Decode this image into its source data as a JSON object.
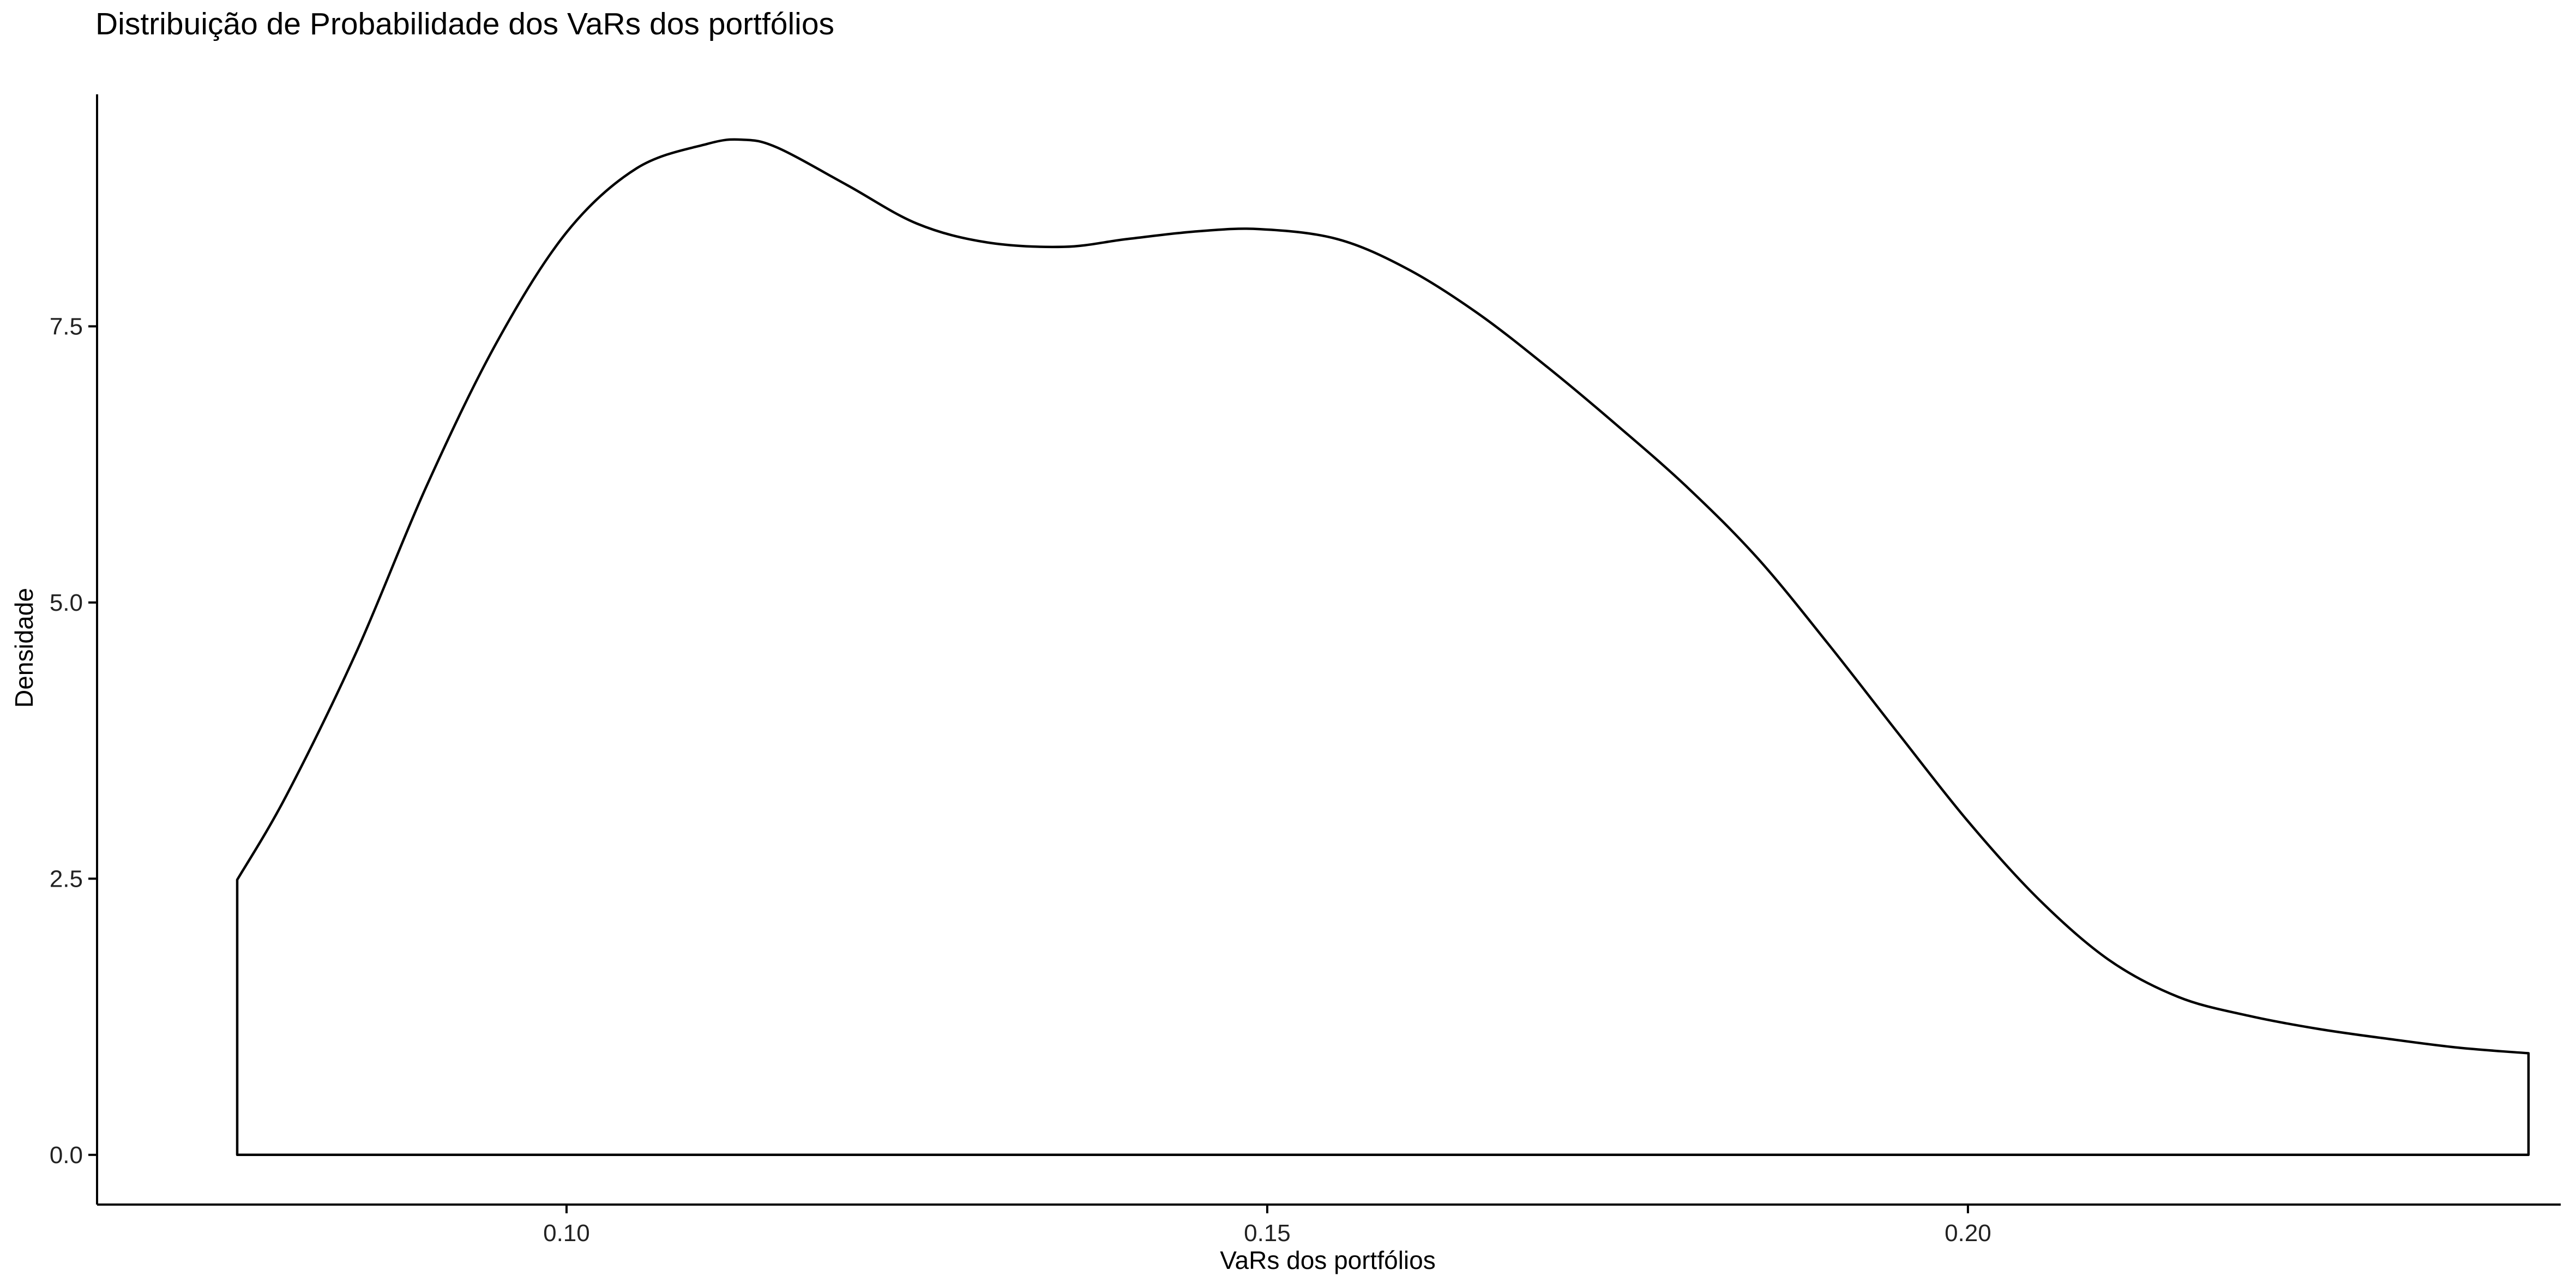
{
  "chart_data": {
    "type": "area",
    "title": "Distribuição de Probabilidade dos VaRs dos portfólios",
    "xlabel": "VaRs dos portfólios",
    "ylabel": "Densidade",
    "xlim": [
      0.0665,
      0.2423
    ],
    "ylim": [
      -0.45,
      9.6
    ],
    "xticks": [
      0.1,
      0.15,
      0.2
    ],
    "xtick_labels": [
      "0.10",
      "0.15",
      "0.20"
    ],
    "yticks": [
      0.0,
      2.5,
      5.0,
      7.5
    ],
    "ytick_labels": [
      "0.0",
      "2.5",
      "5.0",
      "7.5"
    ],
    "grid": false,
    "legend": "none",
    "colors": {
      "line": "#000000",
      "fill": "#ffffff",
      "axis": "#000000"
    },
    "series": [
      {
        "x": [
          0.0765,
          0.08,
          0.085,
          0.09,
          0.095,
          0.1,
          0.105,
          0.11,
          0.1125,
          0.115,
          0.12,
          0.125,
          0.13,
          0.1355,
          0.14,
          0.145,
          0.1495,
          0.155,
          0.16,
          0.165,
          0.17,
          0.175,
          0.18,
          0.185,
          0.19,
          0.195,
          0.2,
          0.205,
          0.21,
          0.215,
          0.22,
          0.225,
          0.23,
          0.235,
          0.24
        ],
        "y": [
          2.49,
          3.25,
          4.55,
          6.05,
          7.35,
          8.35,
          8.93,
          9.15,
          9.19,
          9.12,
          8.78,
          8.43,
          8.26,
          8.22,
          8.29,
          8.36,
          8.38,
          8.29,
          8.02,
          7.62,
          7.13,
          6.6,
          6.04,
          5.4,
          4.63,
          3.82,
          3.02,
          2.32,
          1.77,
          1.43,
          1.26,
          1.14,
          1.05,
          0.97,
          0.92
        ]
      }
    ]
  }
}
